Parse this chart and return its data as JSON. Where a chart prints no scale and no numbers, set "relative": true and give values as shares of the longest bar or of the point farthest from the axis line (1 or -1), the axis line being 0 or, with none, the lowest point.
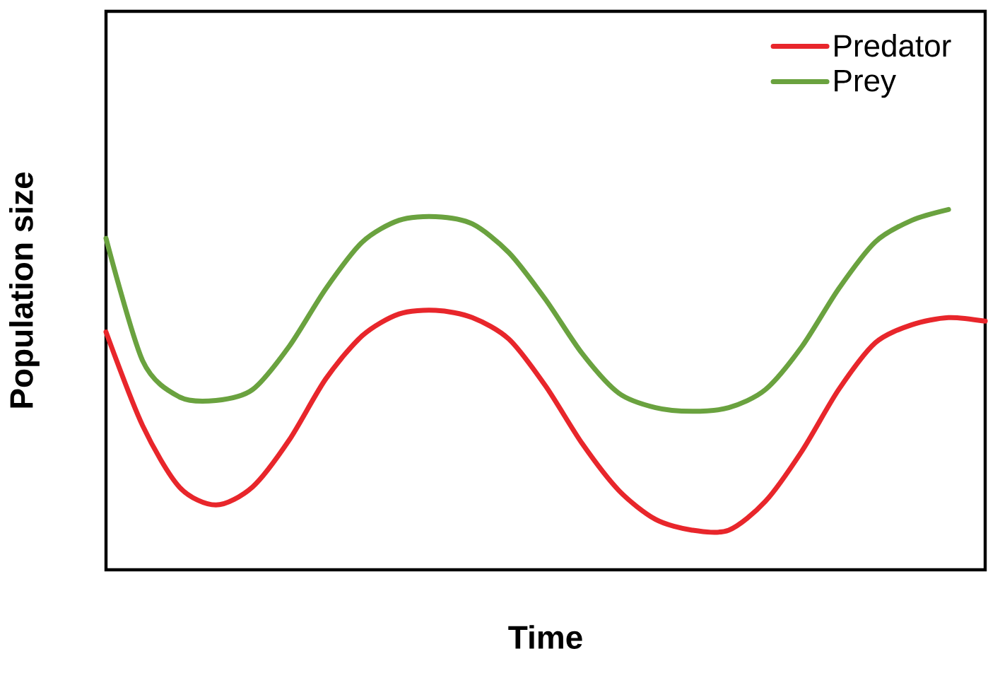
{
  "chart_data": {
    "type": "line",
    "relative": true,
    "xlabel": "Time",
    "ylabel": "Population size",
    "legend": "top right",
    "categories": [
      null,
      null,
      null,
      null,
      null,
      null,
      null,
      null,
      null,
      null,
      null,
      null,
      null,
      null,
      null,
      null,
      null,
      null,
      null,
      null,
      null,
      null,
      null,
      null,
      null
    ],
    "series": [
      {
        "name": "Predator",
        "color": "#e8262b",
        "values": [
          0.66,
          0.4,
          0.23,
          0.18,
          0.23,
          0.36,
          0.53,
          0.65,
          0.71,
          0.72,
          0.7,
          0.64,
          0.51,
          0.35,
          0.22,
          0.14,
          0.11,
          0.11,
          0.19,
          0.33,
          0.5,
          0.63,
          0.68,
          0.7,
          0.69
        ]
      },
      {
        "name": "Prey",
        "color": "#6aa23f",
        "values": [
          0.92,
          0.58,
          0.48,
          0.47,
          0.5,
          0.62,
          0.78,
          0.91,
          0.97,
          0.98,
          0.96,
          0.88,
          0.75,
          0.6,
          0.49,
          0.45,
          0.44,
          0.45,
          0.5,
          0.62,
          0.78,
          0.91,
          0.97,
          1.0,
          null
        ]
      }
    ]
  }
}
